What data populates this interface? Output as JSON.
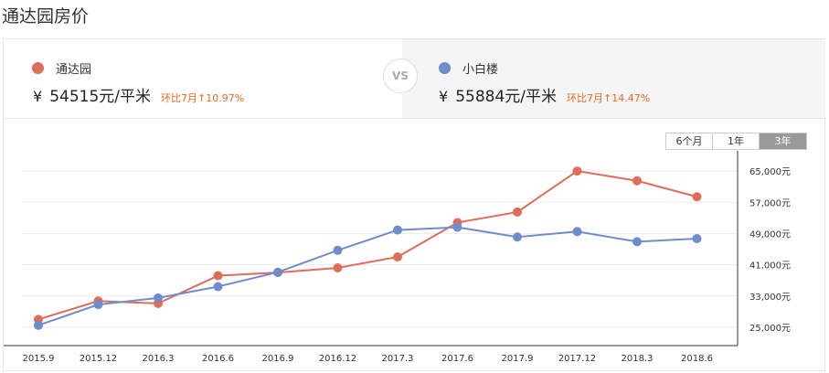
{
  "page": {
    "title": "通达园房价"
  },
  "left_community": {
    "name": "通达园",
    "currency": "¥",
    "price": "54515",
    "unit": "元/平米",
    "change": "环比7月↑10.97%",
    "color": "#e06c5a"
  },
  "vs_label": "VS",
  "right_community": {
    "name": "小白楼",
    "currency": "¥",
    "price": "55884",
    "unit": "元/平米",
    "change": "环比7月↑14.47%",
    "color": "#6f8ccc"
  },
  "range_tabs": [
    {
      "label": "6个月",
      "active": false
    },
    {
      "label": "1年",
      "active": false
    },
    {
      "label": "3年",
      "active": true
    }
  ],
  "chart_data": {
    "type": "line",
    "x": [
      "2015.9",
      "2015.12",
      "2016.3",
      "2016.6",
      "2016.9",
      "2016.12",
      "2017.3",
      "2017.6",
      "2017.9",
      "2017.12",
      "2018.3",
      "2018.6"
    ],
    "series": [
      {
        "name": "通达园",
        "color": "#e06c5a",
        "values": [
          27000,
          31700,
          31100,
          38200,
          39000,
          40200,
          43000,
          51800,
          54500,
          65000,
          62500,
          58400
        ]
      },
      {
        "name": "小白楼",
        "color": "#6f8ccc",
        "values": [
          25500,
          30800,
          32500,
          35400,
          39100,
          44700,
          49900,
          50600,
          48100,
          49500,
          46900,
          47700
        ]
      }
    ],
    "ylim": [
      21000,
      69000
    ],
    "yticks": [
      {
        "value": 25000,
        "label": "25,000元"
      },
      {
        "value": 33000,
        "label": "33,000元"
      },
      {
        "value": 41000,
        "label": "41,000元"
      },
      {
        "value": 49000,
        "label": "49,000元"
      },
      {
        "value": 57000,
        "label": "57,000元"
      },
      {
        "value": 65000,
        "label": "65,000元"
      }
    ],
    "grid": true,
    "y_axis_position": "right"
  }
}
